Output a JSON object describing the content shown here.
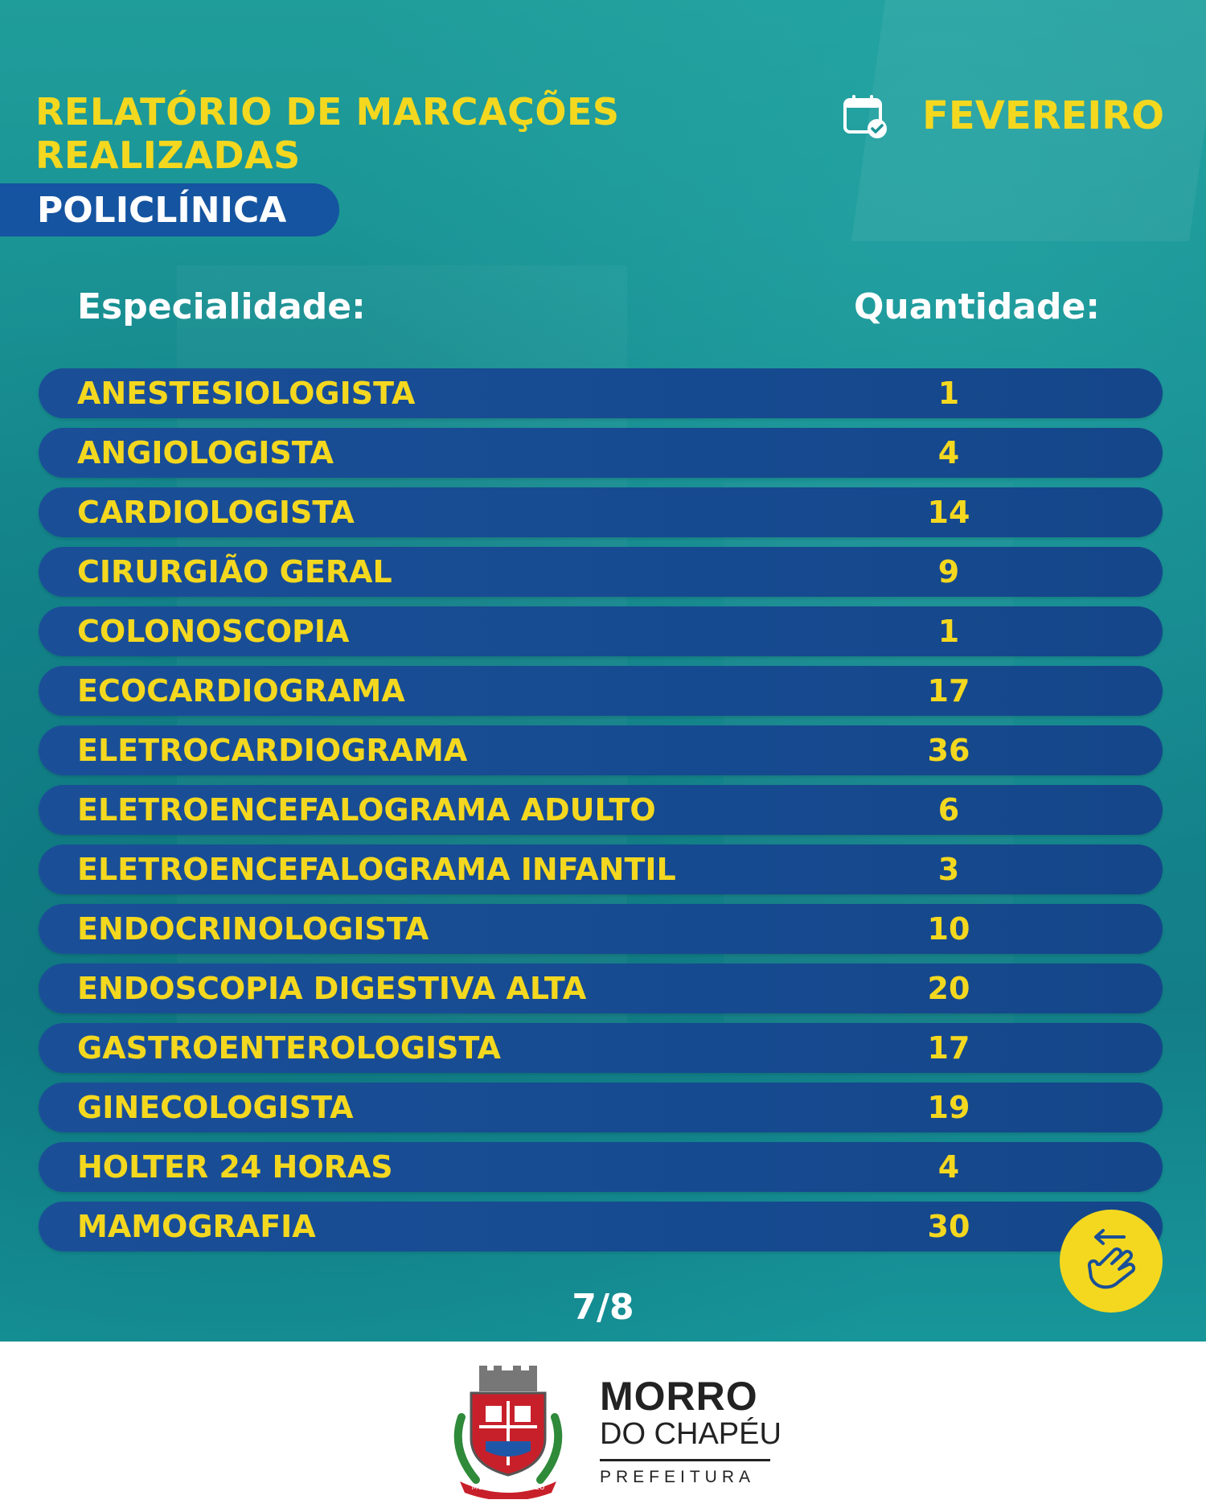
{
  "header": {
    "title_line1": "RELATÓRIO DE MARCAÇÕES",
    "title_line2": "REALIZADAS",
    "month": "FEVEREIRO",
    "calendar_icon": "calendar-check-icon",
    "unit": "POLICLÍNICA"
  },
  "table": {
    "col_specialty": "Especialidade:",
    "col_quantity": "Quantidade:",
    "rows": [
      {
        "name": "ANESTESIOLOGISTA",
        "qty": "1"
      },
      {
        "name": "ANGIOLOGISTA",
        "qty": "4"
      },
      {
        "name": "CARDIOLOGISTA",
        "qty": "14"
      },
      {
        "name": "CIRURGIÃO GERAL",
        "qty": "9"
      },
      {
        "name": "COLONOSCOPIA",
        "qty": "1"
      },
      {
        "name": "ECOCARDIOGRAMA",
        "qty": "17"
      },
      {
        "name": "ELETROCARDIOGRAMA",
        "qty": "36"
      },
      {
        "name": "ELETROENCEFALOGRAMA ADULTO",
        "qty": "6"
      },
      {
        "name": "ELETROENCEFALOGRAMA INFANTIL",
        "qty": "3"
      },
      {
        "name": "ENDOCRINOLOGISTA",
        "qty": "10"
      },
      {
        "name": "ENDOSCOPIA DIGESTIVA ALTA",
        "qty": "20"
      },
      {
        "name": "GASTROENTEROLOGISTA",
        "qty": "17"
      },
      {
        "name": "GINECOLOGISTA",
        "qty": "19"
      },
      {
        "name": "HOLTER 24 HORAS",
        "qty": "4"
      },
      {
        "name": "MAMOGRAFIA",
        "qty": "30"
      }
    ]
  },
  "swipe_icon": "swipe-hand-icon",
  "page_indicator": "7/8",
  "footer": {
    "brand_line1": "MORRO",
    "brand_line2": "DO CHAPÉU",
    "brand_line3": "PREFEITURA",
    "crest": "municipal-coat-of-arms-logo",
    "crest_text": "MORRO DO CHAPÉU"
  },
  "colors": {
    "accent_yellow": "#f4d81f",
    "row_blue": "#1a4f98",
    "background_teal": "#1a9294"
  }
}
